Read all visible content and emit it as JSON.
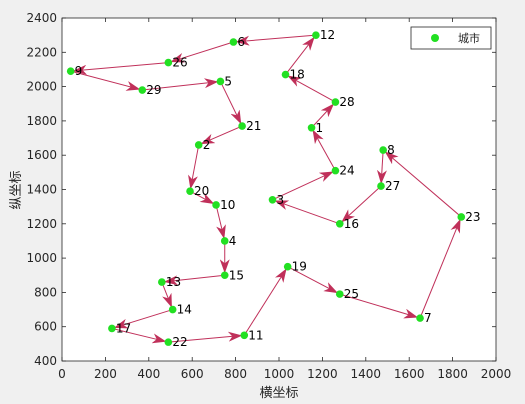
{
  "chart_data": {
    "type": "scatter",
    "xlabel": "横坐标",
    "ylabel": "纵坐标",
    "xlim": [
      0,
      2000
    ],
    "ylim": [
      400,
      2400
    ],
    "xticks": [
      0,
      200,
      400,
      600,
      800,
      1000,
      1200,
      1400,
      1600,
      1800,
      2000
    ],
    "yticks": [
      400,
      600,
      800,
      1000,
      1200,
      1400,
      1600,
      1800,
      2000,
      2200,
      2400
    ],
    "legend": {
      "label": "城市",
      "position": "top-right"
    },
    "colors": {
      "point": "#22e022",
      "route": "#c0305a",
      "axes": "#262626"
    },
    "cities": [
      {
        "id": "1",
        "x": 1150,
        "y": 1760
      },
      {
        "id": "2",
        "x": 630,
        "y": 1660
      },
      {
        "id": "3",
        "x": 970,
        "y": 1340
      },
      {
        "id": "4",
        "x": 750,
        "y": 1100
      },
      {
        "id": "5",
        "x": 730,
        "y": 2030
      },
      {
        "id": "6",
        "x": 790,
        "y": 2260
      },
      {
        "id": "7",
        "x": 1650,
        "y": 650
      },
      {
        "id": "8",
        "x": 1480,
        "y": 1630
      },
      {
        "id": "9",
        "x": 40,
        "y": 2090
      },
      {
        "id": "10",
        "x": 710,
        "y": 1310
      },
      {
        "id": "11",
        "x": 840,
        "y": 550
      },
      {
        "id": "12",
        "x": 1170,
        "y": 2300
      },
      {
        "id": "13",
        "x": 460,
        "y": 860
      },
      {
        "id": "14",
        "x": 510,
        "y": 700
      },
      {
        "id": "15",
        "x": 750,
        "y": 900
      },
      {
        "id": "16",
        "x": 1280,
        "y": 1200
      },
      {
        "id": "17",
        "x": 230,
        "y": 590
      },
      {
        "id": "18",
        "x": 1030,
        "y": 2070
      },
      {
        "id": "19",
        "x": 1040,
        "y": 950
      },
      {
        "id": "20",
        "x": 590,
        "y": 1390
      },
      {
        "id": "21",
        "x": 830,
        "y": 1770
      },
      {
        "id": "22",
        "x": 490,
        "y": 510
      },
      {
        "id": "23",
        "x": 1840,
        "y": 1240
      },
      {
        "id": "24",
        "x": 1260,
        "y": 1510
      },
      {
        "id": "25",
        "x": 1280,
        "y": 790
      },
      {
        "id": "26",
        "x": 490,
        "y": 2140
      },
      {
        "id": "27",
        "x": 1470,
        "y": 1420
      },
      {
        "id": "28",
        "x": 1260,
        "y": 1910
      },
      {
        "id": "29",
        "x": 370,
        "y": 1980
      }
    ],
    "route": [
      "3",
      "24",
      "1",
      "28",
      "18",
      "12",
      "6",
      "26",
      "9",
      "29",
      "5",
      "21",
      "2",
      "20",
      "10",
      "4",
      "15",
      "13",
      "14",
      "17",
      "22",
      "11",
      "19",
      "25",
      "7",
      "23",
      "8",
      "27",
      "16",
      "3"
    ]
  }
}
